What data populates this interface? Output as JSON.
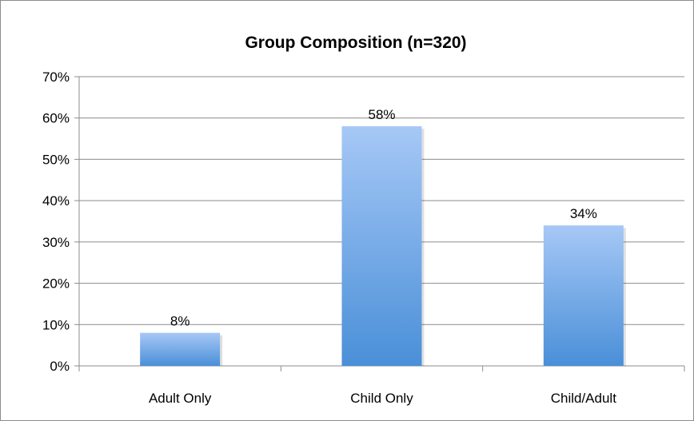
{
  "chart_data": {
    "type": "bar",
    "title": "Group Composition (n=320)",
    "categories": [
      "Adult Only",
      "Child Only",
      "Child/Adult"
    ],
    "values": [
      8,
      58,
      34
    ],
    "data_labels": [
      "8%",
      "58%",
      "34%"
    ],
    "y_ticks": [
      "0%",
      "10%",
      "20%",
      "30%",
      "40%",
      "50%",
      "60%",
      "70%"
    ],
    "ylim": [
      0,
      70
    ],
    "ytick_step": 10,
    "grid": true,
    "legend": "none",
    "colors": {
      "bar_top": "#A6C8F6",
      "bar_bottom": "#4A8FD8",
      "grid": "#8c8c8c"
    }
  }
}
